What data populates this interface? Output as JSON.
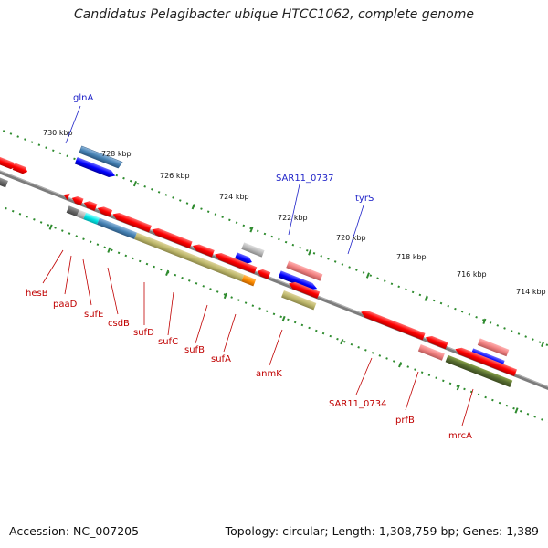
{
  "title": "Candidatus Pelagibacter ubique HTCC1062, complete genome",
  "footer": {
    "accession": "Accession: NC_007205",
    "stats": "Topology: circular; Length: 1,308,759 bp; Genes: 1,389"
  },
  "colors": {
    "backbone": "#7c7c7c",
    "tick": "#2e8b2e",
    "cds": "#ff1010",
    "rna": "#0000ff",
    "top_label": "#1f23c8",
    "bottom_label": "#c00000"
  },
  "kbp_labels": [
    "730 kbp",
    "728 kbp",
    "726 kbp",
    "724 kbp",
    "722 kbp",
    "720 kbp",
    "718 kbp",
    "716 kbp",
    "714 kbp"
  ],
  "top_labels": [
    "glnA",
    "SAR11_0737",
    "tyrS"
  ],
  "bottom_labels": [
    "hesB",
    "paaD",
    "sufE",
    "csdB",
    "sufD",
    "sufC",
    "sufB",
    "sufA",
    "anmK",
    "SAR11_0734",
    "prfB",
    "mrcA"
  ]
}
